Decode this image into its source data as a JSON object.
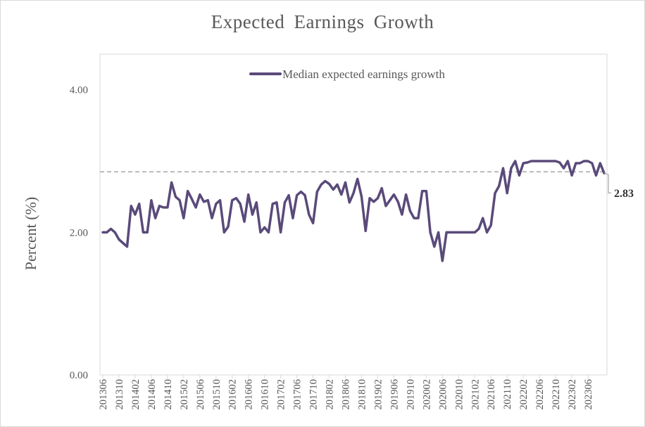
{
  "chart_data": {
    "type": "line",
    "title": "Expected Earnings Growth",
    "ylabel": "Percent (%)",
    "xlabel": "",
    "ylim": [
      0,
      4.5
    ],
    "yticks": [
      "0.00",
      "2.00",
      "4.00"
    ],
    "legend": "top-center",
    "grid": false,
    "reference_line": {
      "value": 2.85,
      "style": "dashed",
      "color": "#a6a6a6"
    },
    "end_label": "2.83",
    "x_tick_labels": [
      "201306",
      "201310",
      "201402",
      "201406",
      "201410",
      "201502",
      "201506",
      "201510",
      "201602",
      "201606",
      "201610",
      "201702",
      "201706",
      "201710",
      "201802",
      "201806",
      "201810",
      "201902",
      "201906",
      "201910",
      "202002",
      "202006",
      "202010",
      "202102",
      "202106",
      "202110",
      "202202",
      "202206",
      "202210",
      "202302",
      "202306"
    ],
    "series": [
      {
        "name": "Median expected earnings growth",
        "color": "#5a4a7a",
        "values": [
          2.0,
          2.0,
          2.05,
          2.0,
          1.9,
          1.85,
          1.8,
          2.37,
          2.25,
          2.4,
          2.0,
          2.0,
          2.45,
          2.2,
          2.37,
          2.35,
          2.35,
          2.7,
          2.5,
          2.45,
          2.2,
          2.58,
          2.47,
          2.35,
          2.53,
          2.43,
          2.45,
          2.2,
          2.4,
          2.45,
          2.0,
          2.08,
          2.45,
          2.48,
          2.4,
          2.15,
          2.53,
          2.25,
          2.42,
          2.0,
          2.07,
          2.0,
          2.4,
          2.42,
          2.0,
          2.42,
          2.52,
          2.2,
          2.52,
          2.57,
          2.52,
          2.25,
          2.13,
          2.57,
          2.67,
          2.72,
          2.68,
          2.6,
          2.67,
          2.53,
          2.7,
          2.42,
          2.55,
          2.75,
          2.5,
          2.02,
          2.48,
          2.43,
          2.48,
          2.62,
          2.37,
          2.45,
          2.53,
          2.43,
          2.25,
          2.53,
          2.3,
          2.2,
          2.2,
          2.58,
          2.58,
          2.0,
          1.8,
          2.0,
          1.6,
          2.0,
          2.0,
          2.0,
          2.0,
          2.0,
          2.0,
          2.0,
          2.0,
          2.05,
          2.2,
          2.0,
          2.1,
          2.55,
          2.65,
          2.9,
          2.55,
          2.9,
          3.0,
          2.8,
          2.97,
          2.98,
          3.0,
          3.0,
          3.0,
          3.0,
          3.0,
          3.0,
          3.0,
          2.98,
          2.9,
          3.0,
          2.8,
          2.97,
          2.97,
          3.0,
          3.0,
          2.97,
          2.8,
          2.97,
          2.83
        ]
      }
    ]
  }
}
